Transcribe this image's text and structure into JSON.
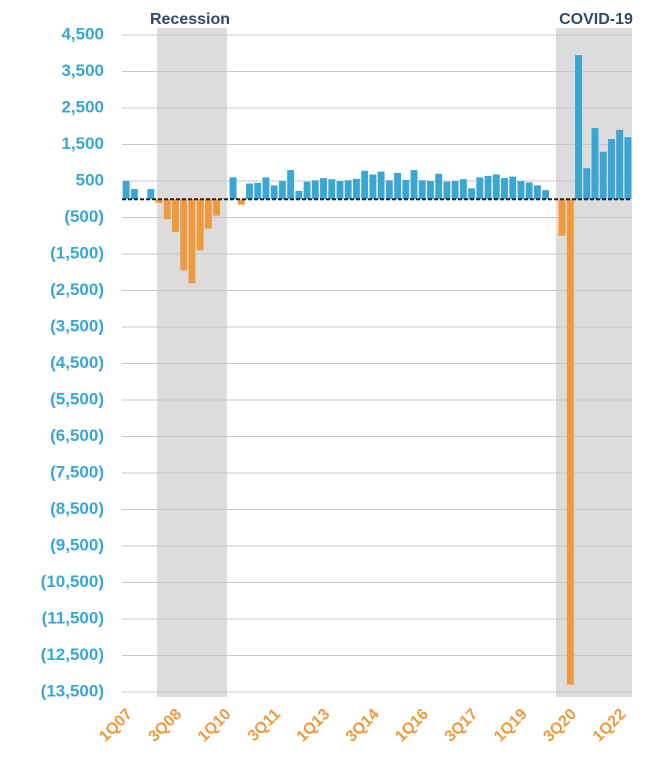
{
  "chart_data": {
    "type": "bar",
    "annotations": [
      "Recession",
      "COVID-19"
    ],
    "categories": [
      "1Q07",
      null,
      null,
      null,
      null,
      null,
      "3Q08",
      null,
      null,
      null,
      null,
      null,
      "1Q10",
      null,
      null,
      null,
      null,
      null,
      "3Q11",
      null,
      null,
      null,
      null,
      null,
      "1Q13",
      null,
      null,
      null,
      null,
      null,
      "3Q14",
      null,
      null,
      null,
      null,
      null,
      "1Q16",
      null,
      null,
      null,
      null,
      null,
      "3Q17",
      null,
      null,
      null,
      null,
      null,
      "1Q19",
      null,
      null,
      null,
      null,
      null,
      "3Q20",
      null,
      null,
      null,
      null,
      null,
      "1Q22",
      null
    ],
    "values": [
      500,
      280,
      0,
      280,
      -100,
      -550,
      -900,
      -1950,
      -2300,
      -1400,
      -800,
      -450,
      20,
      600,
      -150,
      430,
      450,
      600,
      380,
      500,
      800,
      230,
      480,
      520,
      580,
      550,
      500,
      520,
      560,
      780,
      680,
      760,
      520,
      720,
      530,
      800,
      520,
      500,
      700,
      480,
      500,
      550,
      300,
      600,
      640,
      680,
      580,
      620,
      500,
      460,
      380,
      250,
      0,
      -1000,
      -13300,
      3950,
      850,
      1950,
      1300,
      1650,
      1900,
      1700
    ],
    "colors": {
      "positive": "#3aa6d6",
      "negative": "#ef9a3e"
    },
    "ylim": [
      -13500,
      4500
    ],
    "yticks": [
      {
        "value": 4500,
        "label": "4,500"
      },
      {
        "value": 3500,
        "label": "3,500"
      },
      {
        "value": 2500,
        "label": "2,500"
      },
      {
        "value": 1500,
        "label": "1,500"
      },
      500,
      {
        "value": -500,
        "label": "(500)"
      },
      {
        "value": -1500,
        "label": "(1,500)"
      },
      {
        "value": -2500,
        "label": "(2,500)"
      },
      {
        "value": -3500,
        "label": "(3,500)"
      },
      {
        "value": -4500,
        "label": "(4,500)"
      },
      {
        "value": -5500,
        "label": "(5,500)"
      },
      {
        "value": -6500,
        "label": "(6,500)"
      },
      {
        "value": -7500,
        "label": "(7,500)"
      },
      {
        "value": -8500,
        "label": "(8,500)"
      },
      {
        "value": -9500,
        "label": "(9,500)"
      },
      {
        "value": -10500,
        "label": "(10,500)"
      },
      {
        "value": -11500,
        "label": "(11,500)"
      },
      {
        "value": -12500,
        "label": "(12,500)"
      },
      {
        "value": -13500,
        "label": "(13,500)"
      }
    ],
    "grid": true
  }
}
